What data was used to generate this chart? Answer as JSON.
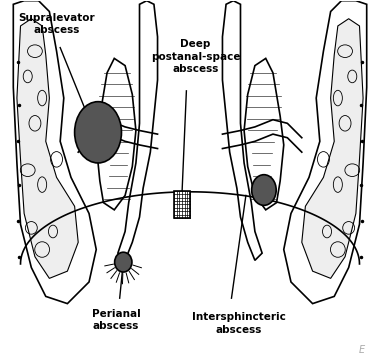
{
  "bg_color": "#ffffff",
  "line_color": "#000000",
  "abscess_dark": "#555555",
  "labels": {
    "supralevator": "Supralevator\nabscess",
    "deep_postanal": "Deep\npostanal-space\nabscess",
    "perianal": "Perianal\nabscess",
    "intersphincteric": "Intersphincteric\nabscess"
  },
  "figsize": [
    3.8,
    3.62
  ],
  "dpi": 100
}
